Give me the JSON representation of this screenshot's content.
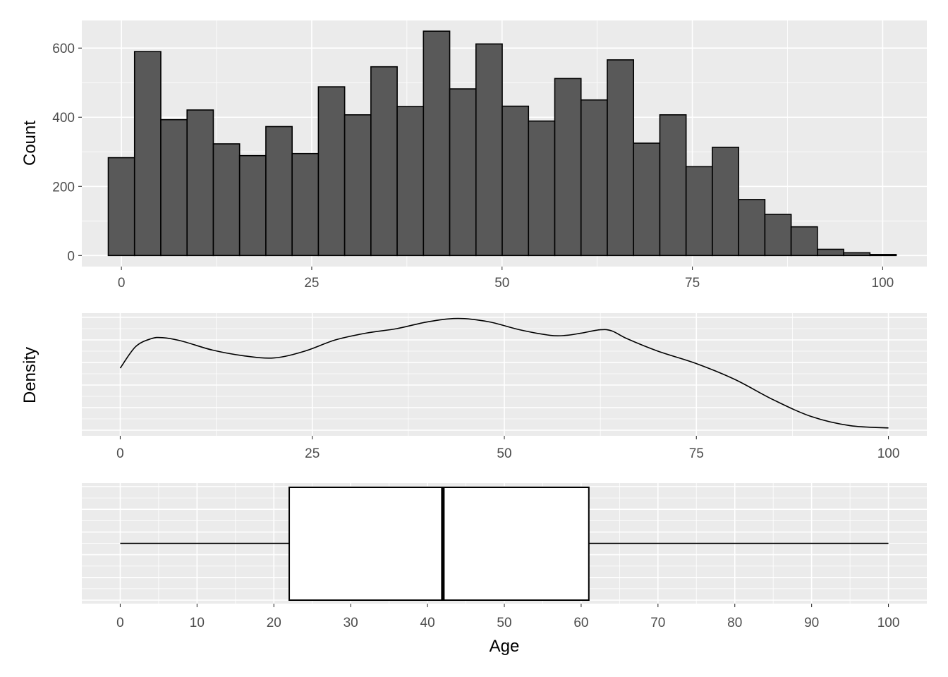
{
  "chart_data": [
    {
      "type": "bar",
      "subtype": "histogram",
      "ylabel": "Count",
      "xlim": [
        -5.2,
        105.8
      ],
      "ylim": [
        -32,
        680
      ],
      "x_ticks": [
        0,
        25,
        50,
        75,
        100
      ],
      "y_ticks": [
        0,
        200,
        400,
        600
      ],
      "bin_width": 3.45,
      "bin_start": -1.725,
      "values": [
        283,
        590,
        393,
        421,
        323,
        289,
        373,
        295,
        488,
        407,
        546,
        431,
        649,
        482,
        612,
        432,
        389,
        512,
        450,
        566,
        325,
        407,
        257,
        313,
        162,
        119,
        83,
        18,
        8,
        3
      ],
      "grid": true,
      "colors": {
        "bar": "#595959",
        "panel": "#ebebeb"
      }
    },
    {
      "type": "line",
      "subtype": "density",
      "ylabel": "Density",
      "xlim": [
        -5,
        105
      ],
      "ylim": [
        0,
        1
      ],
      "x_ticks": [
        0,
        25,
        50,
        75,
        100
      ],
      "x": [
        0,
        2,
        4,
        5.5,
        8,
        12,
        16,
        20,
        24,
        28,
        32,
        36,
        40,
        44,
        48,
        52,
        56,
        58,
        60,
        62.5,
        64,
        66,
        70,
        75,
        80,
        85,
        90,
        95,
        100
      ],
      "y": [
        0.55,
        0.74,
        0.81,
        0.82,
        0.79,
        0.71,
        0.66,
        0.64,
        0.7,
        0.8,
        0.86,
        0.9,
        0.96,
        0.99,
        0.96,
        0.89,
        0.84,
        0.84,
        0.86,
        0.89,
        0.88,
        0.81,
        0.7,
        0.59,
        0.45,
        0.27,
        0.12,
        0.04,
        0.02
      ],
      "grid": true
    },
    {
      "type": "box",
      "xlabel": "Age",
      "xlim": [
        -5,
        105
      ],
      "x_ticks": [
        0,
        10,
        20,
        30,
        40,
        50,
        60,
        70,
        80,
        90,
        100
      ],
      "min": 0,
      "q1": 22,
      "median": 42,
      "q3": 61,
      "max": 100,
      "grid": true
    }
  ]
}
